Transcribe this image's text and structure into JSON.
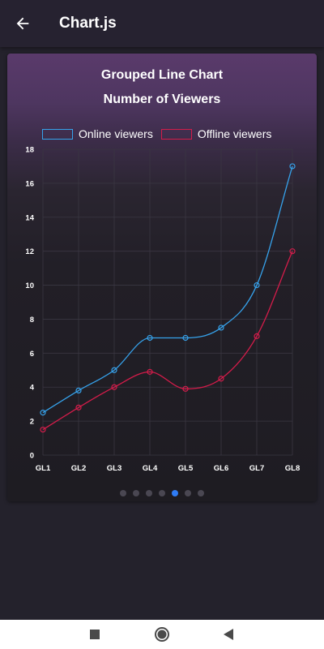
{
  "app_bar": {
    "title": "Chart.js",
    "back_icon": "arrow-back-icon"
  },
  "chart_card": {
    "title_line1": "Grouped Line Chart",
    "title_line2": "Number of Viewers"
  },
  "colors": {
    "online": "#36a2eb",
    "offline": "#d41c4a",
    "grid": "#3a3742",
    "page_dot_active": "#2f7cf6",
    "page_dot_inactive": "#4a4752"
  },
  "chart_data": {
    "type": "line",
    "title": "Grouped Line Chart",
    "subtitle": "Number of Viewers",
    "categories": [
      "GL1",
      "GL2",
      "GL3",
      "GL4",
      "GL5",
      "GL6",
      "GL7",
      "GL8"
    ],
    "series": [
      {
        "name": "Online viewers",
        "values": [
          2.5,
          3.8,
          5,
          6.9,
          6.9,
          7.5,
          10,
          17
        ]
      },
      {
        "name": "Offline viewers",
        "values": [
          1.5,
          2.8,
          4,
          4.9,
          3.9,
          4.5,
          7,
          12
        ]
      }
    ],
    "ylim": [
      0,
      18
    ],
    "yticks": [
      0,
      2,
      4,
      6,
      8,
      10,
      12,
      14,
      16,
      18
    ],
    "grid": true,
    "legend": "top",
    "smooth": true
  },
  "pagination": {
    "count": 7,
    "active_index": 4
  },
  "nav_bar": {
    "recents_icon": "square-icon",
    "home_icon": "circle-icon",
    "back_icon": "triangle-back-icon"
  }
}
